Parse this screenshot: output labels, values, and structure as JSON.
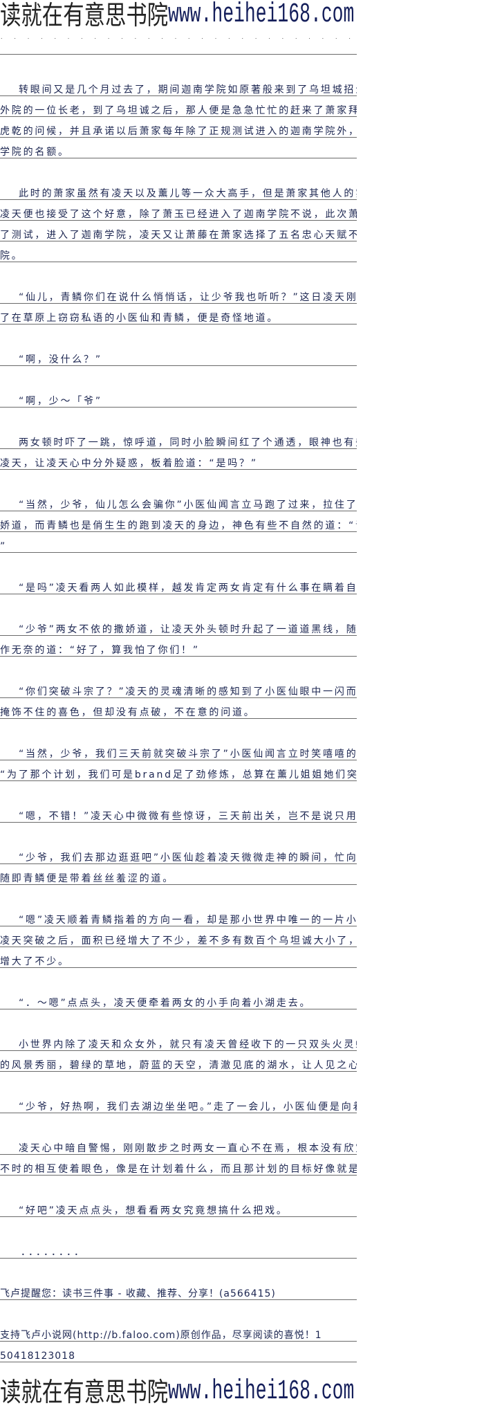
{
  "banner": {
    "cn": "读就在有意思书院",
    "url": "www.heihei168.com"
  },
  "garble": "˙ ˙ ˙ ˙ ˙ ˙ ˙ ˙ ˙ ˙ ˙ ˙ ˙ ˙ ˙ ˙ ˙ ˙ ˙ ˙ ˙ ˙ ˙ ˙ ˙ ˙ ˙",
  "paragraphs": [
    [
      "转眼间又是几个月过去了，期间迦南学院如原著般来到了乌坦城招生，负责招生的是当初",
      "外院的一位长老，到了乌坦诚之后，那人便是急急忙忙的赶来了萧家拜会凌天，带来了苏千和",
      "虎乾的问候，并且承诺以后萧家每年除了正规测试进入的迦南学院外，额外还有五个进入迦南",
      "学院的名额。"
    ],
    [
      "此时的萧家虽然有凌天以及薰儿等一众大高手，但是萧家其他人的实力却是菜得很，所以",
      "凌天便也接受了这个好意，除了萧玉已经进入了迦南学院不说，此次萧媚和萧宁凭借天赋通过",
      "了测试，进入了迦南学院，凌天又让萧藤在萧家选择了五名忠心天赋不错的少年进入了迦南学",
      "院。"
    ],
    [
      "“仙儿，青鳞你们在说什么悄悄话，让少爷我也听听？”这日凌天刚刚闭关出来，就看到",
      "了在草原上窃窃私语的小医仙和青鳞，便是奇怪地道。"
    ],
    [
      "“啊，没什么？”"
    ],
    [
      "“啊，少～「爷”"
    ],
    [
      "两女顿时吓了一跳，惊呼道，同时小脸瞬间红了个通透，眼神也有些闪烁，低着头不敢看",
      "凌天，让凌天心中分外疑惑，板着脸道：“是吗？”"
    ],
    [
      "“当然，少爷，仙儿怎么会骗你”小医仙闻言立马跑了过来，拉住了凌天的一只手臂，撒",
      "娇道，而青鳞也是俏生生的跑到凌天的身边，神色有些不自然的道：“青鳞也不会骗少爷的！",
      "”"
    ],
    [
      "“是吗”凌天看两人如此模样，越发肯定两女肯定有什么事在瞒着自己。"
    ],
    [
      "“少爷”两女不依的撒娇道，让凌天外头顿时升起了一道道黑线，随即便也不再追问，装",
      "作无奈的道：“好了，算我怕了你们！”"
    ],
    [
      "“你们突破斗宗了？”凌天的灵魂清晰的感知到了小医仙眼中一闪而逝的狡黠和青鳞眼中",
      "掩饰不住的喜色，但却没有点破，不在意的问道。"
    ],
    [
      "“当然，少爷，我们三天前就突破斗宗了”小医仙闻言立时笑嘻嘻的道，心中却是暗道：",
      "“为了那个计划，我们可是brand足了劲修炼，总算在薰儿姐姐她们突破前出关了。”"
    ],
    [
      "“嗯，不错！”凌天心中微微有些惊讶，三天前出关，岂不是说只用了两天就突破了！"
    ],
    [
      "“少爷，我们去那边逛逛吧”小医仙趁着凌天微微走神的瞬间，忙向着青鳞使了个眼神，",
      "随即青鳞便是带着丝丝羞涩的道。"
    ],
    [
      "“嗯”凌天顺着青鳞指着的方向一看，却是那小世界中唯一的一片小湖，如今的小世界在",
      "凌天突破之后，面积已经增大了不少，差不多有数百个乌坦诚大小了，随之而来的那小湖也是",
      "增大了不少。"
    ],
    [
      "“．～嗯”点点头，凌天便牵着两女的小手向着小湖走去。"
    ],
    [
      "小世界内除了凌天和众女外，就只有凌天曾经收下的一只双头火灵蛇，所以整个小世界内",
      "的风景秀丽，碧绿的草地，蔚蓝的天空，清澈见底的湖水，让人见之心旷神(吗吗的)怡。"
    ],
    [
      "“少爷，好热啊，我们去湖边坐坐吧。”走了一会儿，小医仙便是向着凌天撒娇道。"
    ],
    [
      "凌天心中暗自警惕，刚刚散步之时两女一直心不在焉，根本没有欣赏周围的风景，而且还",
      "不时的相互使着眼色，像是在计划着什么，而且那计划的目标好像就是自己。"
    ],
    [
      "“好吧”凌天点点头，想看看两女究竟想搞什么把戏。"
    ]
  ],
  "dots": "．．．．．．．．",
  "notes": {
    "reminder": "飞卢提醒您：读书三件事 - 收藏、推荐、分享！(a566415)",
    "support": [
      "支持飞卢小说网(http://b.faloo.com)原创作品，尽享阅读的喜悦！1",
      "50418123018"
    ]
  }
}
